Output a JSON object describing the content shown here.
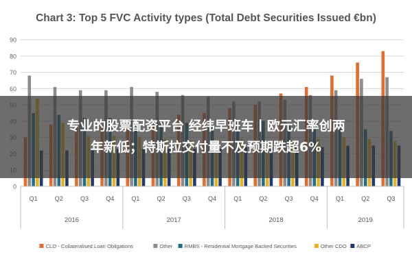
{
  "chart_data": {
    "type": "bar",
    "title": "Chart 3: Top 5 FVC Activity types (Total Debt Securities Issued €bn)",
    "xlabel": "",
    "ylabel": "",
    "ylim": [
      0,
      90
    ],
    "yticks": [
      0,
      10,
      20,
      30,
      40,
      50,
      60,
      70,
      80,
      90
    ],
    "grid": true,
    "legend_position": "bottom",
    "categories": [
      "Q1",
      "Q2",
      "Q3",
      "Q4",
      "Q1",
      "Q2",
      "Q3",
      "Q4",
      "Q1",
      "Q2",
      "Q3",
      "Q4",
      "Q1",
      "Q2",
      "Q3"
    ],
    "year_groups": [
      {
        "label": "2016",
        "count": 4
      },
      {
        "label": "2017",
        "count": 4
      },
      {
        "label": "2018",
        "count": 4
      },
      {
        "label": "2019",
        "count": 3
      }
    ],
    "series": [
      {
        "name": "CLO - Collateralised Loan Obligations",
        "color": "#E46C2C",
        "values": [
          30,
          38,
          38,
          38,
          39,
          39,
          44,
          45,
          48,
          50,
          57,
          61,
          68,
          76,
          83
        ]
      },
      {
        "name": "Other",
        "color": "#8C8C8C",
        "values": [
          68,
          61,
          59,
          59,
          61,
          58,
          56,
          55,
          52,
          52,
          53,
          56,
          59,
          66,
          67
        ]
      },
      {
        "name": "RMBS - Residential Mortgage Backed Securities",
        "color": "#1F6E8C",
        "values": [
          45,
          44,
          42,
          42,
          40,
          40,
          39,
          38,
          40,
          40,
          38,
          39,
          38,
          35,
          34
        ]
      },
      {
        "name": "Other CDO",
        "color": "#E8B21C",
        "values": [
          54,
          39,
          31,
          31,
          30,
          29,
          28,
          28,
          29,
          27,
          28,
          29,
          30,
          29,
          28
        ]
      },
      {
        "name": "ABCP",
        "color": "#1E3A70",
        "values": [
          22,
          22,
          22,
          23,
          23,
          23,
          23,
          23,
          24,
          24,
          24,
          24,
          25,
          25,
          25
        ]
      }
    ]
  },
  "overlay": {
    "line1": "专业的股票配资平台 经纬早班车丨欧元汇率创两",
    "line2": "年新低；特斯拉交付量不及预期跌超6%"
  }
}
